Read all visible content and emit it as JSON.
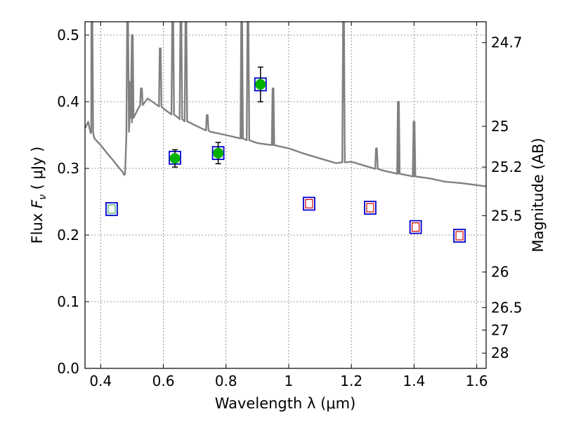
{
  "chart_data": {
    "type": "scatter",
    "xlabel": "Wavelength  λ (μm)",
    "ylabel": "Flux  F_ν  ( μJy )",
    "ylabel_right": "Magnitude (AB)",
    "xlim": [
      0.35,
      1.63
    ],
    "ylim": [
      0.0,
      0.52
    ],
    "grid": true,
    "x_ticks": [
      0.4,
      0.6,
      0.8,
      1.0,
      1.2,
      1.4,
      1.6
    ],
    "x_tick_labels": [
      "0.4",
      "0.6",
      "0.8",
      "1",
      "1.2",
      "1.4",
      "1.6"
    ],
    "y_ticks": [
      0.0,
      0.1,
      0.2,
      0.3,
      0.4,
      0.5
    ],
    "y_tick_labels": [
      "0.0",
      "0.1",
      "0.2",
      "0.3",
      "0.4",
      "0.5"
    ],
    "right_ticks": [
      {
        "label": "24.7",
        "flux": 0.4887
      },
      {
        "label": "25",
        "flux": 0.3631
      },
      {
        "label": "25.2",
        "flux": 0.302
      },
      {
        "label": "25.5",
        "flux": 0.2291
      },
      {
        "label": "26",
        "flux": 0.1445
      },
      {
        "label": "26.5",
        "flux": 0.0912
      },
      {
        "label": "27",
        "flux": 0.0575
      },
      {
        "label": "28",
        "flux": 0.0229
      }
    ],
    "colors": {
      "model": "#808080",
      "detected": "#00b000",
      "box": "#0000cc",
      "predicted": "#cc0000",
      "predicted_blue": "#33aa66",
      "errorbar": "#000000"
    },
    "series": [
      {
        "kind": "model_spectrum",
        "points": [
          [
            0.35,
            0.36
          ],
          [
            0.36,
            0.37
          ],
          [
            0.37,
            0.355
          ],
          [
            0.38,
            0.345
          ],
          [
            0.4,
            0.335
          ],
          [
            0.42,
            0.323
          ],
          [
            0.44,
            0.312
          ],
          [
            0.46,
            0.3
          ],
          [
            0.47,
            0.295
          ],
          [
            0.475,
            0.29
          ],
          [
            0.478,
            0.292
          ],
          [
            0.482,
            0.35
          ],
          [
            0.49,
            0.36
          ],
          [
            0.5,
            0.375
          ],
          [
            0.52,
            0.39
          ],
          [
            0.55,
            0.405
          ],
          [
            0.6,
            0.39
          ],
          [
            0.65,
            0.375
          ],
          [
            0.7,
            0.365
          ],
          [
            0.75,
            0.355
          ],
          [
            0.8,
            0.35
          ],
          [
            0.85,
            0.345
          ],
          [
            0.9,
            0.338
          ],
          [
            0.95,
            0.335
          ],
          [
            1.0,
            0.33
          ],
          [
            1.05,
            0.322
          ],
          [
            1.1,
            0.315
          ],
          [
            1.15,
            0.308
          ],
          [
            1.2,
            0.31
          ],
          [
            1.25,
            0.303
          ],
          [
            1.3,
            0.297
          ],
          [
            1.35,
            0.292
          ],
          [
            1.4,
            0.288
          ],
          [
            1.45,
            0.285
          ],
          [
            1.5,
            0.28
          ],
          [
            1.55,
            0.278
          ],
          [
            1.6,
            0.275
          ],
          [
            1.63,
            0.273
          ]
        ],
        "emission_lines": [
          {
            "x": 0.372,
            "peak": 0.52
          },
          {
            "x": 0.486,
            "peak": 0.52
          },
          {
            "x": 0.496,
            "peak": 0.43
          },
          {
            "x": 0.501,
            "peak": 0.5
          },
          {
            "x": 0.53,
            "peak": 0.42
          },
          {
            "x": 0.59,
            "peak": 0.48
          },
          {
            "x": 0.63,
            "peak": 0.52
          },
          {
            "x": 0.656,
            "peak": 0.52
          },
          {
            "x": 0.672,
            "peak": 0.52
          },
          {
            "x": 0.74,
            "peak": 0.38
          },
          {
            "x": 0.85,
            "peak": 0.52
          },
          {
            "x": 0.87,
            "peak": 0.52
          },
          {
            "x": 0.95,
            "peak": 0.42
          },
          {
            "x": 1.175,
            "peak": 0.52
          },
          {
            "x": 1.28,
            "peak": 0.33
          },
          {
            "x": 1.35,
            "peak": 0.4
          },
          {
            "x": 1.4,
            "peak": 0.37
          }
        ]
      },
      {
        "kind": "detected",
        "points": [
          {
            "x": 0.637,
            "y": 0.315,
            "err": 0.013
          },
          {
            "x": 0.775,
            "y": 0.323,
            "err": 0.016
          },
          {
            "x": 0.91,
            "y": 0.426,
            "err": 0.026
          }
        ]
      },
      {
        "kind": "model_photometry",
        "points": [
          {
            "x": 0.435,
            "y": 0.239,
            "marker": "green"
          },
          {
            "x": 0.637,
            "y": 0.316,
            "marker": "none"
          },
          {
            "x": 0.775,
            "y": 0.323,
            "marker": "none"
          },
          {
            "x": 0.91,
            "y": 0.426,
            "marker": "none"
          },
          {
            "x": 1.065,
            "y": 0.247,
            "marker": "red"
          },
          {
            "x": 1.26,
            "y": 0.241,
            "marker": "red"
          },
          {
            "x": 1.405,
            "y": 0.212,
            "marker": "red"
          },
          {
            "x": 1.545,
            "y": 0.199,
            "marker": "red"
          }
        ]
      }
    ]
  }
}
